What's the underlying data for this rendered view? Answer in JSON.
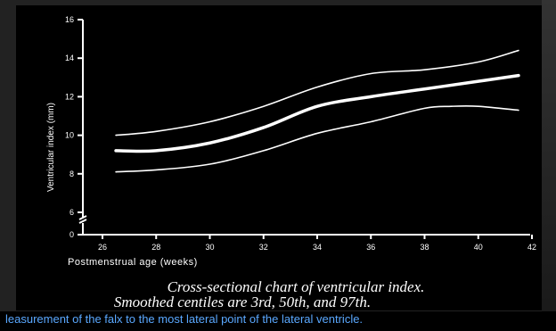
{
  "chart_data": {
    "type": "line",
    "title": "",
    "xlabel": "Postmenstrual age (weeks)",
    "ylabel": "Ventricular index (mm)",
    "xlim": [
      26,
      42
    ],
    "ylim": [
      6,
      16
    ],
    "x_ticks": [
      "26",
      "28",
      "30",
      "32",
      "34",
      "36",
      "38",
      "40",
      "42"
    ],
    "y_ticks": [
      "6",
      "8",
      "10",
      "12",
      "14",
      "16"
    ],
    "y_axis_zero_label": "0",
    "grid": false,
    "series": [
      {
        "name": "3rd",
        "x": [
          26.5,
          28,
          30,
          32,
          34,
          36,
          38,
          39,
          40,
          41.5
        ],
        "y": [
          8.1,
          8.2,
          8.5,
          9.2,
          10.1,
          10.7,
          11.4,
          11.5,
          11.5,
          11.3
        ]
      },
      {
        "name": "50th",
        "x": [
          26.5,
          28,
          30,
          32,
          34,
          36,
          38,
          40,
          41.5
        ],
        "y": [
          9.2,
          9.2,
          9.6,
          10.4,
          11.5,
          12.0,
          12.4,
          12.8,
          13.1
        ]
      },
      {
        "name": "97th",
        "x": [
          26.5,
          28,
          30,
          32,
          34,
          36,
          38,
          40,
          41.5
        ],
        "y": [
          10.0,
          10.2,
          10.7,
          11.5,
          12.5,
          13.2,
          13.4,
          13.8,
          14.4
        ]
      }
    ]
  },
  "caption": {
    "line1": "Cross-sectional chart of ventricular index.",
    "line2": "Smoothed centiles are 3rd, 50th, and 97th."
  },
  "footer_text": "leasurement of the falx to the most lateral point of the lateral ventricle."
}
